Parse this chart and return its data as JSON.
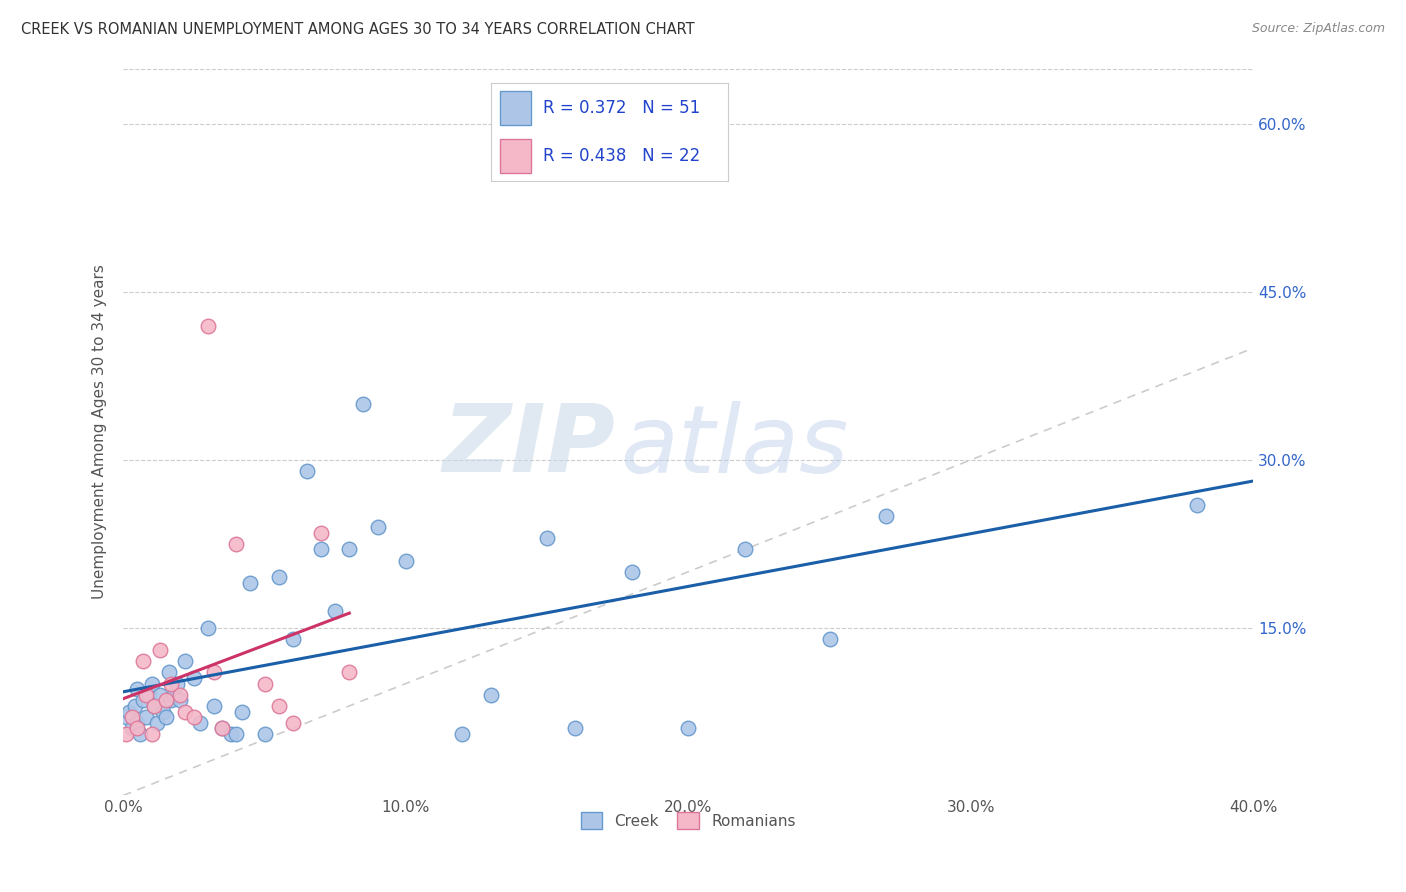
{
  "title": "CREEK VS ROMANIAN UNEMPLOYMENT AMONG AGES 30 TO 34 YEARS CORRELATION CHART",
  "source": "Source: ZipAtlas.com",
  "ylabel": "Unemployment Among Ages 30 to 34 years",
  "xlim": [
    0.0,
    0.4
  ],
  "ylim": [
    0.0,
    0.65
  ],
  "xtick_labels": [
    "0.0%",
    "10.0%",
    "20.0%",
    "30.0%",
    "40.0%"
  ],
  "xtick_values": [
    0.0,
    0.1,
    0.2,
    0.3,
    0.4
  ],
  "ytick_labels": [
    "15.0%",
    "30.0%",
    "45.0%",
    "60.0%"
  ],
  "ytick_values": [
    0.15,
    0.3,
    0.45,
    0.6
  ],
  "creek_color": "#adc6e8",
  "romanian_color": "#f5b8c8",
  "creek_edge_color": "#6699cc",
  "romanian_edge_color": "#dd7799",
  "trendline_creek_color": "#1a5fa8",
  "trendline_romanian_color": "#cc3366",
  "diagonal_color": "#cccccc",
  "right_tick_color": "#3366cc",
  "creek_R": 0.372,
  "creek_N": 51,
  "romanian_R": 0.438,
  "romanian_N": 22,
  "creek_x": [
    0.001,
    0.002,
    0.003,
    0.004,
    0.005,
    0.005,
    0.006,
    0.007,
    0.008,
    0.009,
    0.01,
    0.011,
    0.012,
    0.013,
    0.014,
    0.015,
    0.016,
    0.017,
    0.018,
    0.019,
    0.02,
    0.022,
    0.025,
    0.027,
    0.03,
    0.032,
    0.035,
    0.038,
    0.04,
    0.042,
    0.045,
    0.05,
    0.055,
    0.06,
    0.065,
    0.07,
    0.075,
    0.08,
    0.085,
    0.09,
    0.1,
    0.12,
    0.13,
    0.15,
    0.16,
    0.18,
    0.2,
    0.22,
    0.25,
    0.27,
    0.38
  ],
  "creek_y": [
    0.07,
    0.075,
    0.06,
    0.08,
    0.065,
    0.095,
    0.055,
    0.085,
    0.07,
    0.09,
    0.1,
    0.08,
    0.065,
    0.09,
    0.075,
    0.07,
    0.11,
    0.085,
    0.09,
    0.1,
    0.085,
    0.12,
    0.105,
    0.065,
    0.15,
    0.08,
    0.06,
    0.055,
    0.055,
    0.075,
    0.19,
    0.055,
    0.195,
    0.14,
    0.29,
    0.22,
    0.165,
    0.22,
    0.35,
    0.24,
    0.21,
    0.055,
    0.09,
    0.23,
    0.06,
    0.2,
    0.06,
    0.22,
    0.14,
    0.25,
    0.26
  ],
  "romanian_x": [
    0.001,
    0.003,
    0.005,
    0.007,
    0.008,
    0.01,
    0.011,
    0.013,
    0.015,
    0.017,
    0.02,
    0.022,
    0.025,
    0.03,
    0.032,
    0.035,
    0.04,
    0.05,
    0.055,
    0.06,
    0.07,
    0.08
  ],
  "romanian_y": [
    0.055,
    0.07,
    0.06,
    0.12,
    0.09,
    0.055,
    0.08,
    0.13,
    0.085,
    0.1,
    0.09,
    0.075,
    0.07,
    0.42,
    0.11,
    0.06,
    0.225,
    0.1,
    0.08,
    0.065,
    0.235,
    0.11
  ]
}
